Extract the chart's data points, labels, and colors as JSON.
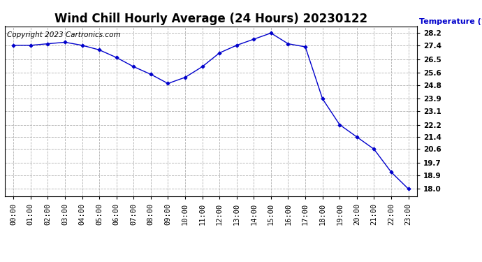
{
  "title": "Wind Chill Hourly Average (24 Hours) 20230122",
  "copyright": "Copyright 2023 Cartronics.com",
  "ylabel": "Temperature (°F)",
  "hours": [
    "00:00",
    "01:00",
    "02:00",
    "03:00",
    "04:00",
    "05:00",
    "06:00",
    "07:00",
    "08:00",
    "09:00",
    "10:00",
    "11:00",
    "12:00",
    "13:00",
    "14:00",
    "15:00",
    "16:00",
    "17:00",
    "18:00",
    "19:00",
    "20:00",
    "21:00",
    "22:00",
    "23:00"
  ],
  "values": [
    27.4,
    27.4,
    27.5,
    27.6,
    27.4,
    27.1,
    26.6,
    26.0,
    25.5,
    24.9,
    25.3,
    26.0,
    26.9,
    27.4,
    27.8,
    28.2,
    27.5,
    27.3,
    23.9,
    22.2,
    21.4,
    20.6,
    19.1,
    18.0
  ],
  "line_color": "#0000cc",
  "marker_color": "#0000cc",
  "background_color": "#ffffff",
  "grid_color": "#b0b0b0",
  "title_color": "#000000",
  "ylabel_color": "#0000cc",
  "copyright_color": "#000000",
  "ylim_min": 17.5,
  "ylim_max": 28.65,
  "yticks": [
    18.0,
    18.9,
    19.7,
    20.6,
    21.4,
    22.2,
    23.1,
    23.9,
    24.8,
    25.6,
    26.5,
    27.4,
    28.2
  ],
  "title_fontsize": 12,
  "label_fontsize": 8,
  "tick_fontsize": 7.5,
  "copyright_fontsize": 7.5
}
